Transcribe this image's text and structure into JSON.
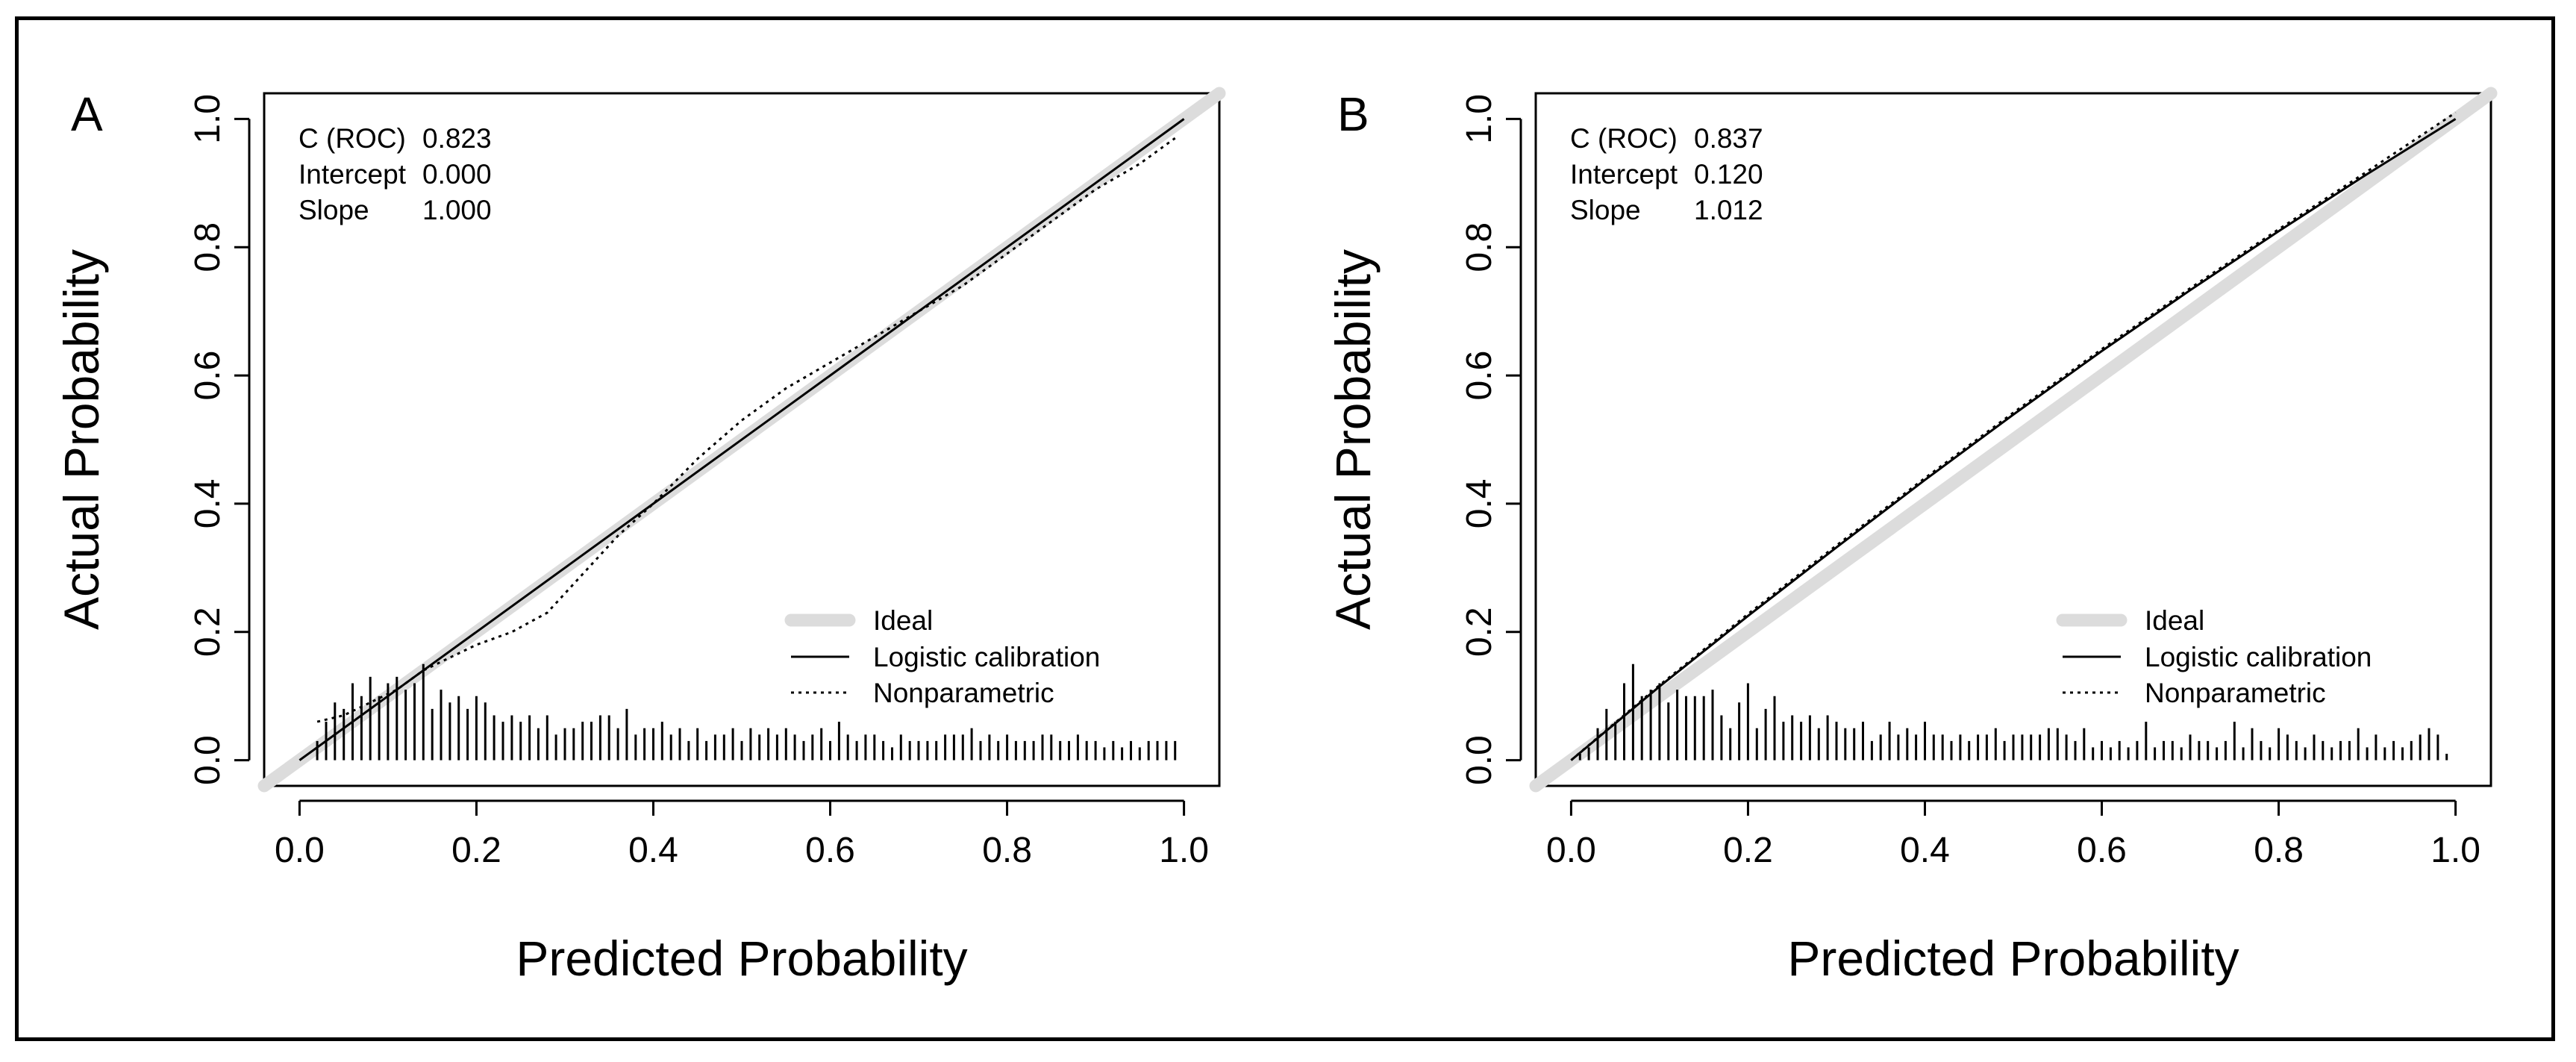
{
  "chart_data": [
    {
      "panel": "A",
      "type": "line",
      "xlabel": "Predicted Probability",
      "ylabel": "Actual Probability",
      "xlim": [
        -0.04,
        1.04
      ],
      "ylim": [
        -0.04,
        1.04
      ],
      "xticks": [
        "0.0",
        "0.2",
        "0.4",
        "0.6",
        "0.8",
        "1.0"
      ],
      "yticks": [
        "0.0",
        "0.2",
        "0.4",
        "0.6",
        "0.8",
        "1.0"
      ],
      "stats": [
        {
          "label": "C (ROC)",
          "value": "0.823"
        },
        {
          "label": "Intercept",
          "value": "0.000"
        },
        {
          "label": "Slope",
          "value": "1.000"
        }
      ],
      "legend": [
        {
          "label": "Ideal",
          "style": "ideal"
        },
        {
          "label": "Logistic calibration",
          "style": "solid"
        },
        {
          "label": "Nonparametric",
          "style": "dotted"
        }
      ],
      "series": [
        {
          "name": "Ideal",
          "x": [
            -0.04,
            1.04
          ],
          "y": [
            -0.04,
            1.04
          ]
        },
        {
          "name": "Logistic calibration",
          "x": [
            0.0,
            0.2,
            0.4,
            0.6,
            0.8,
            1.0
          ],
          "y": [
            0.0,
            0.2,
            0.4,
            0.6,
            0.8,
            1.0
          ]
        },
        {
          "name": "Nonparametric",
          "x": [
            0.02,
            0.05,
            0.08,
            0.11,
            0.14,
            0.17,
            0.2,
            0.24,
            0.28,
            0.32,
            0.36,
            0.4,
            0.45,
            0.5,
            0.55,
            0.6,
            0.65,
            0.7,
            0.75,
            0.8,
            0.85,
            0.9,
            0.95,
            0.99
          ],
          "y": [
            0.06,
            0.07,
            0.09,
            0.11,
            0.14,
            0.16,
            0.18,
            0.2,
            0.23,
            0.29,
            0.35,
            0.4,
            0.47,
            0.53,
            0.58,
            0.62,
            0.66,
            0.7,
            0.74,
            0.79,
            0.84,
            0.89,
            0.93,
            0.97
          ]
        }
      ],
      "rug_x": [
        0.02,
        0.03,
        0.04,
        0.05,
        0.06,
        0.07,
        0.08,
        0.09,
        0.1,
        0.11,
        0.12,
        0.13,
        0.14,
        0.15,
        0.16,
        0.17,
        0.18,
        0.19,
        0.2,
        0.21,
        0.22,
        0.23,
        0.24,
        0.25,
        0.26,
        0.27,
        0.28,
        0.29,
        0.3,
        0.31,
        0.32,
        0.33,
        0.34,
        0.35,
        0.36,
        0.37,
        0.38,
        0.39,
        0.4,
        0.41,
        0.42,
        0.43,
        0.44,
        0.45,
        0.46,
        0.47,
        0.48,
        0.49,
        0.5,
        0.51,
        0.52,
        0.53,
        0.54,
        0.55,
        0.56,
        0.57,
        0.58,
        0.59,
        0.6,
        0.61,
        0.62,
        0.63,
        0.64,
        0.65,
        0.66,
        0.67,
        0.68,
        0.69,
        0.7,
        0.71,
        0.72,
        0.73,
        0.74,
        0.75,
        0.76,
        0.77,
        0.78,
        0.79,
        0.8,
        0.81,
        0.82,
        0.83,
        0.84,
        0.85,
        0.86,
        0.87,
        0.88,
        0.89,
        0.9,
        0.91,
        0.92,
        0.93,
        0.94,
        0.95,
        0.96,
        0.97,
        0.98,
        0.99
      ],
      "rug_h": [
        0.03,
        0.06,
        0.09,
        0.08,
        0.12,
        0.1,
        0.13,
        0.1,
        0.12,
        0.13,
        0.11,
        0.12,
        0.15,
        0.08,
        0.11,
        0.09,
        0.1,
        0.08,
        0.1,
        0.09,
        0.07,
        0.06,
        0.07,
        0.06,
        0.07,
        0.05,
        0.07,
        0.04,
        0.05,
        0.05,
        0.06,
        0.06,
        0.07,
        0.07,
        0.05,
        0.08,
        0.04,
        0.05,
        0.05,
        0.06,
        0.04,
        0.05,
        0.03,
        0.05,
        0.03,
        0.04,
        0.04,
        0.05,
        0.03,
        0.05,
        0.04,
        0.05,
        0.04,
        0.05,
        0.04,
        0.03,
        0.04,
        0.05,
        0.03,
        0.06,
        0.04,
        0.03,
        0.04,
        0.04,
        0.03,
        0.02,
        0.04,
        0.03,
        0.03,
        0.03,
        0.03,
        0.04,
        0.04,
        0.04,
        0.05,
        0.03,
        0.04,
        0.03,
        0.04,
        0.03,
        0.03,
        0.03,
        0.04,
        0.04,
        0.03,
        0.03,
        0.04,
        0.03,
        0.03,
        0.02,
        0.03,
        0.02,
        0.03,
        0.02,
        0.03,
        0.03,
        0.03,
        0.03
      ]
    },
    {
      "panel": "B",
      "type": "line",
      "xlabel": "Predicted Probability",
      "ylabel": "Actual Probability",
      "xlim": [
        -0.04,
        1.04
      ],
      "ylim": [
        -0.04,
        1.04
      ],
      "xticks": [
        "0.0",
        "0.2",
        "0.4",
        "0.6",
        "0.8",
        "1.0"
      ],
      "yticks": [
        "0.0",
        "0.2",
        "0.4",
        "0.6",
        "0.8",
        "1.0"
      ],
      "stats": [
        {
          "label": "C (ROC)",
          "value": "0.837"
        },
        {
          "label": "Intercept",
          "value": "0.120"
        },
        {
          "label": "Slope",
          "value": "1.012"
        }
      ],
      "legend": [
        {
          "label": "Ideal",
          "style": "ideal"
        },
        {
          "label": "Logistic calibration",
          "style": "solid"
        },
        {
          "label": "Nonparametric",
          "style": "dotted"
        }
      ],
      "series": [
        {
          "name": "Ideal",
          "x": [
            -0.04,
            1.04
          ],
          "y": [
            -0.04,
            1.04
          ]
        },
        {
          "name": "Logistic calibration",
          "x": [
            0.0,
            0.1,
            0.2,
            0.3,
            0.4,
            0.5,
            0.6,
            0.7,
            0.8,
            0.9,
            1.0
          ],
          "y": [
            0.0,
            0.115,
            0.225,
            0.332,
            0.437,
            0.539,
            0.638,
            0.733,
            0.825,
            0.914,
            1.0
          ]
        },
        {
          "name": "Nonparametric",
          "x": [
            0.0,
            0.1,
            0.2,
            0.3,
            0.4,
            0.5,
            0.6,
            0.7,
            0.8,
            0.9,
            1.0
          ],
          "y": [
            0.0,
            0.117,
            0.228,
            0.335,
            0.44,
            0.542,
            0.641,
            0.736,
            0.828,
            0.918,
            1.01
          ]
        }
      ],
      "rug_x": [
        0.01,
        0.02,
        0.03,
        0.04,
        0.05,
        0.06,
        0.07,
        0.08,
        0.09,
        0.1,
        0.11,
        0.12,
        0.13,
        0.14,
        0.15,
        0.16,
        0.17,
        0.18,
        0.19,
        0.2,
        0.21,
        0.22,
        0.23,
        0.24,
        0.25,
        0.26,
        0.27,
        0.28,
        0.29,
        0.3,
        0.31,
        0.32,
        0.33,
        0.34,
        0.35,
        0.36,
        0.37,
        0.38,
        0.39,
        0.4,
        0.41,
        0.42,
        0.43,
        0.44,
        0.45,
        0.46,
        0.47,
        0.48,
        0.49,
        0.5,
        0.51,
        0.52,
        0.53,
        0.54,
        0.55,
        0.56,
        0.57,
        0.58,
        0.59,
        0.6,
        0.61,
        0.62,
        0.63,
        0.64,
        0.65,
        0.66,
        0.67,
        0.68,
        0.69,
        0.7,
        0.71,
        0.72,
        0.73,
        0.74,
        0.75,
        0.76,
        0.77,
        0.78,
        0.79,
        0.8,
        0.81,
        0.82,
        0.83,
        0.84,
        0.85,
        0.86,
        0.87,
        0.88,
        0.89,
        0.9,
        0.91,
        0.92,
        0.93,
        0.94,
        0.95,
        0.96,
        0.97,
        0.98,
        0.99
      ],
      "rug_h": [
        0.01,
        0.02,
        0.05,
        0.08,
        0.06,
        0.12,
        0.15,
        0.1,
        0.11,
        0.12,
        0.09,
        0.11,
        0.1,
        0.1,
        0.1,
        0.11,
        0.07,
        0.05,
        0.09,
        0.12,
        0.05,
        0.08,
        0.1,
        0.06,
        0.07,
        0.06,
        0.07,
        0.05,
        0.07,
        0.06,
        0.05,
        0.05,
        0.06,
        0.03,
        0.04,
        0.06,
        0.04,
        0.05,
        0.04,
        0.06,
        0.04,
        0.04,
        0.03,
        0.04,
        0.03,
        0.04,
        0.04,
        0.05,
        0.03,
        0.04,
        0.04,
        0.04,
        0.04,
        0.05,
        0.05,
        0.04,
        0.03,
        0.05,
        0.02,
        0.03,
        0.02,
        0.03,
        0.02,
        0.03,
        0.06,
        0.02,
        0.03,
        0.03,
        0.02,
        0.04,
        0.03,
        0.03,
        0.02,
        0.03,
        0.06,
        0.02,
        0.05,
        0.03,
        0.02,
        0.05,
        0.04,
        0.03,
        0.02,
        0.04,
        0.03,
        0.02,
        0.03,
        0.03,
        0.05,
        0.02,
        0.04,
        0.02,
        0.03,
        0.02,
        0.03,
        0.04,
        0.05,
        0.04,
        0.01
      ]
    }
  ],
  "colors": {
    "ideal": "#dcdcdc",
    "line": "#000000",
    "background": "#ffffff"
  }
}
